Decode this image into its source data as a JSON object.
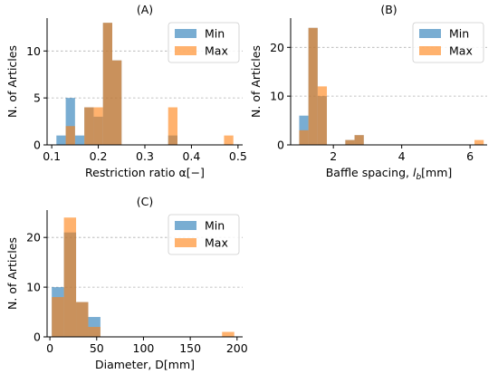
{
  "colors": {
    "min": "#1f77b4",
    "max": "#ff7f0e",
    "overlap": "#bd8063"
  },
  "chart_data": [
    {
      "type": "bar",
      "subtype": "overlaid-histogram",
      "title": "(A)",
      "xlabel": "Restriction ratio α[−]",
      "ylabel": "N. of Articles",
      "xlim": [
        0.09,
        0.51
      ],
      "ylim": [
        0,
        13.5
      ],
      "xticks": [
        0.1,
        0.2,
        0.3,
        0.4,
        0.5
      ],
      "xtick_labels": [
        "0.1",
        "0.2",
        "0.3",
        "0.4",
        "0.5"
      ],
      "yticks": [
        0,
        5,
        10
      ],
      "ytick_labels": [
        "0",
        "5",
        "10"
      ],
      "grid": "y-dashed",
      "legend": "top-right",
      "bin_edges": [
        0.11,
        0.13,
        0.15,
        0.17,
        0.19,
        0.21,
        0.23,
        0.25,
        0.27,
        0.29,
        0.31,
        0.33,
        0.35,
        0.37,
        0.39,
        0.41,
        0.43,
        0.45,
        0.47,
        0.49
      ],
      "series": [
        {
          "name": "Min",
          "values": [
            1,
            5,
            1,
            4,
            3,
            13,
            9,
            0,
            0,
            0,
            0,
            0,
            1,
            0,
            0,
            0,
            0,
            0,
            0
          ]
        },
        {
          "name": "Max",
          "values": [
            0,
            2,
            0,
            4,
            4,
            13,
            9,
            0,
            0,
            0,
            0,
            0,
            4,
            0,
            0,
            0,
            0,
            0,
            1
          ]
        }
      ]
    },
    {
      "type": "bar",
      "subtype": "overlaid-histogram",
      "title": "(B)",
      "xlabel": "Baffle spacing, l_b[mm]",
      "xlabel_parts": [
        "Baffle spacing, ",
        "l",
        "b",
        "[mm]"
      ],
      "ylabel": "N. of Articles",
      "xlim": [
        0.75,
        6.5
      ],
      "ylim": [
        0,
        26
      ],
      "xticks": [
        2,
        4,
        6
      ],
      "xtick_labels": [
        "2",
        "4",
        "6"
      ],
      "yticks": [
        0,
        10,
        20
      ],
      "ytick_labels": [
        "0",
        "10",
        "20"
      ],
      "grid": "y-dashed",
      "legend": "top-right",
      "bin_edges": [
        1.0,
        1.27,
        1.54,
        1.81,
        2.08,
        2.35,
        2.62,
        2.89,
        3.16,
        3.43,
        3.7,
        3.97,
        4.24,
        4.51,
        4.78,
        5.05,
        5.32,
        5.59,
        5.86,
        6.13,
        6.4
      ],
      "series": [
        {
          "name": "Min",
          "values": [
            6,
            24,
            10,
            0,
            0,
            1,
            2,
            0,
            0,
            0,
            0,
            0,
            0,
            0,
            0,
            0,
            0,
            0,
            0,
            0
          ]
        },
        {
          "name": "Max",
          "values": [
            3,
            24,
            12,
            0,
            0,
            1,
            2,
            0,
            0,
            0,
            0,
            0,
            0,
            0,
            0,
            0,
            0,
            0,
            0,
            1
          ]
        }
      ]
    },
    {
      "type": "bar",
      "subtype": "overlaid-histogram",
      "title": "(C)",
      "xlabel": "Diameter, D[mm]",
      "ylabel": "N. of Articles",
      "xlim": [
        -3,
        206
      ],
      "ylim": [
        0,
        25.5
      ],
      "xticks": [
        0,
        50,
        100,
        150,
        200
      ],
      "xtick_labels": [
        "0",
        "50",
        "100",
        "150",
        "200"
      ],
      "yticks": [
        0,
        10,
        20
      ],
      "ytick_labels": [
        "0",
        "10",
        "20"
      ],
      "grid": "y-dashed",
      "legend": "top-right",
      "bin_edges": [
        2,
        15,
        28,
        41,
        54,
        67,
        80,
        93,
        106,
        119,
        132,
        145,
        158,
        171,
        184,
        197
      ],
      "series": [
        {
          "name": "Min",
          "values": [
            10,
            21,
            7,
            4,
            0,
            0,
            0,
            0,
            0,
            0,
            0,
            0,
            0,
            0,
            0
          ]
        },
        {
          "name": "Max",
          "values": [
            8,
            24,
            7,
            2,
            0,
            0,
            0,
            0,
            0,
            0,
            0,
            0,
            0,
            0,
            1
          ]
        }
      ]
    }
  ]
}
